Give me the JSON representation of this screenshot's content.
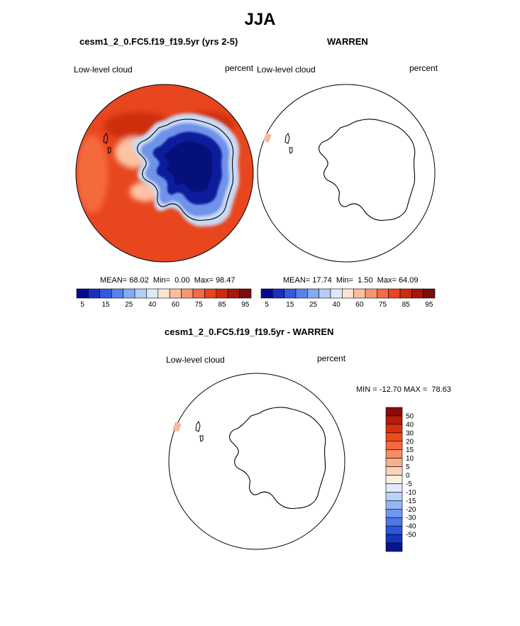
{
  "title": "JJA",
  "panels": [
    {
      "title": "cesm1_2_0.FC5.f19_f19.5yr (yrs 2-5)",
      "variable": "Low-level cloud",
      "units": "percent",
      "stats": "MEAN= 68.02  Min=  0.00  Max= 98.47"
    },
    {
      "title": "WARREN",
      "variable": "Low-level cloud",
      "units": "percent",
      "stats": "MEAN= 17.74  Min=  1.50  Max= 64.09"
    },
    {
      "title": "cesm1_2_0.FC5.f19_f19.5yr - WARREN",
      "variable": "Low-level cloud",
      "units": "percent",
      "stats": "MIN = -12.70 MAX =  78.63"
    }
  ],
  "colorbar_main": {
    "colors": [
      "#08088f",
      "#1a2fbf",
      "#3259de",
      "#5a82ec",
      "#86a9f2",
      "#b3cdf7",
      "#dce9fb",
      "#fde3d2",
      "#fbbd9e",
      "#f79570",
      "#f26b45",
      "#e8441f",
      "#cc2a0d",
      "#a3180a",
      "#7a0c0c"
    ],
    "tick_labels": [
      "5",
      "15",
      "25",
      "40",
      "60",
      "75",
      "85",
      "95"
    ],
    "tick_after_boxes": [
      1,
      3,
      5,
      7,
      9,
      11,
      13,
      15
    ]
  },
  "colorbar_diff": {
    "colors": [
      "#8b0b0b",
      "#b81a0c",
      "#d8300f",
      "#ee4a1b",
      "#f36a3e",
      "#f68c63",
      "#f9ae8c",
      "#fcd2b8",
      "#fdeee3",
      "#dfeafb",
      "#b9d2f7",
      "#94b6f3",
      "#6f97ef",
      "#4c78e9",
      "#2b56dd",
      "#1534bf",
      "#07158f"
    ],
    "tick_labels": [
      "50",
      "40",
      "30",
      "20",
      "15",
      "10",
      "5",
      "0",
      "-5",
      "-10",
      "-15",
      "-20",
      "-30",
      "-40",
      "-50"
    ]
  },
  "map_colors": {
    "ocean": "#e8461f",
    "ocean_dark": "#cf2d0f",
    "ocean_light": "#f56a3c",
    "pale": "#fbc3a4",
    "ice_edge": "#c9daf5",
    "ice_mid": "#6f93ea",
    "ice_core": "#0a1a9c",
    "ice_deep": "#05107a",
    "patch": "#f5b8a0"
  }
}
